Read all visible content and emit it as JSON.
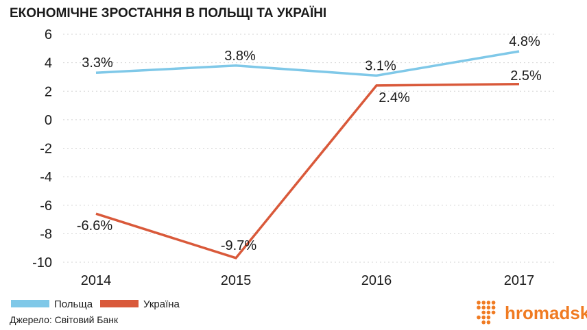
{
  "chart_data": {
    "type": "line",
    "title": "ЕКОНОМІЧНЕ ЗРОСТАННЯ В ПОЛЬЩІ ТА УКРАЇНІ",
    "x": [
      "2014",
      "2015",
      "2016",
      "2017"
    ],
    "ylim": [
      -10,
      6
    ],
    "yticks": [
      6,
      4,
      2,
      0,
      -2,
      -4,
      -6,
      -8,
      -10
    ],
    "grid": true,
    "legend_position": "bottom-left",
    "series": [
      {
        "name": "Польща",
        "color": "#7fc8e8",
        "values": [
          3.3,
          3.8,
          3.1,
          4.8
        ],
        "labels": [
          "3.3%",
          "3.8%",
          "3.1%",
          "4.8%"
        ]
      },
      {
        "name": "Україна",
        "color": "#d9593a",
        "values": [
          -6.6,
          -9.7,
          2.4,
          2.5
        ],
        "labels": [
          "-6.6%",
          "-9.7%",
          "2.4%",
          "2.5%"
        ]
      }
    ]
  },
  "footer": {
    "source": "Джерело: Світовий Банк",
    "brand": "hromadske",
    "brand_color": "#f07b22",
    "brand_icon": "dots-logo-icon"
  }
}
